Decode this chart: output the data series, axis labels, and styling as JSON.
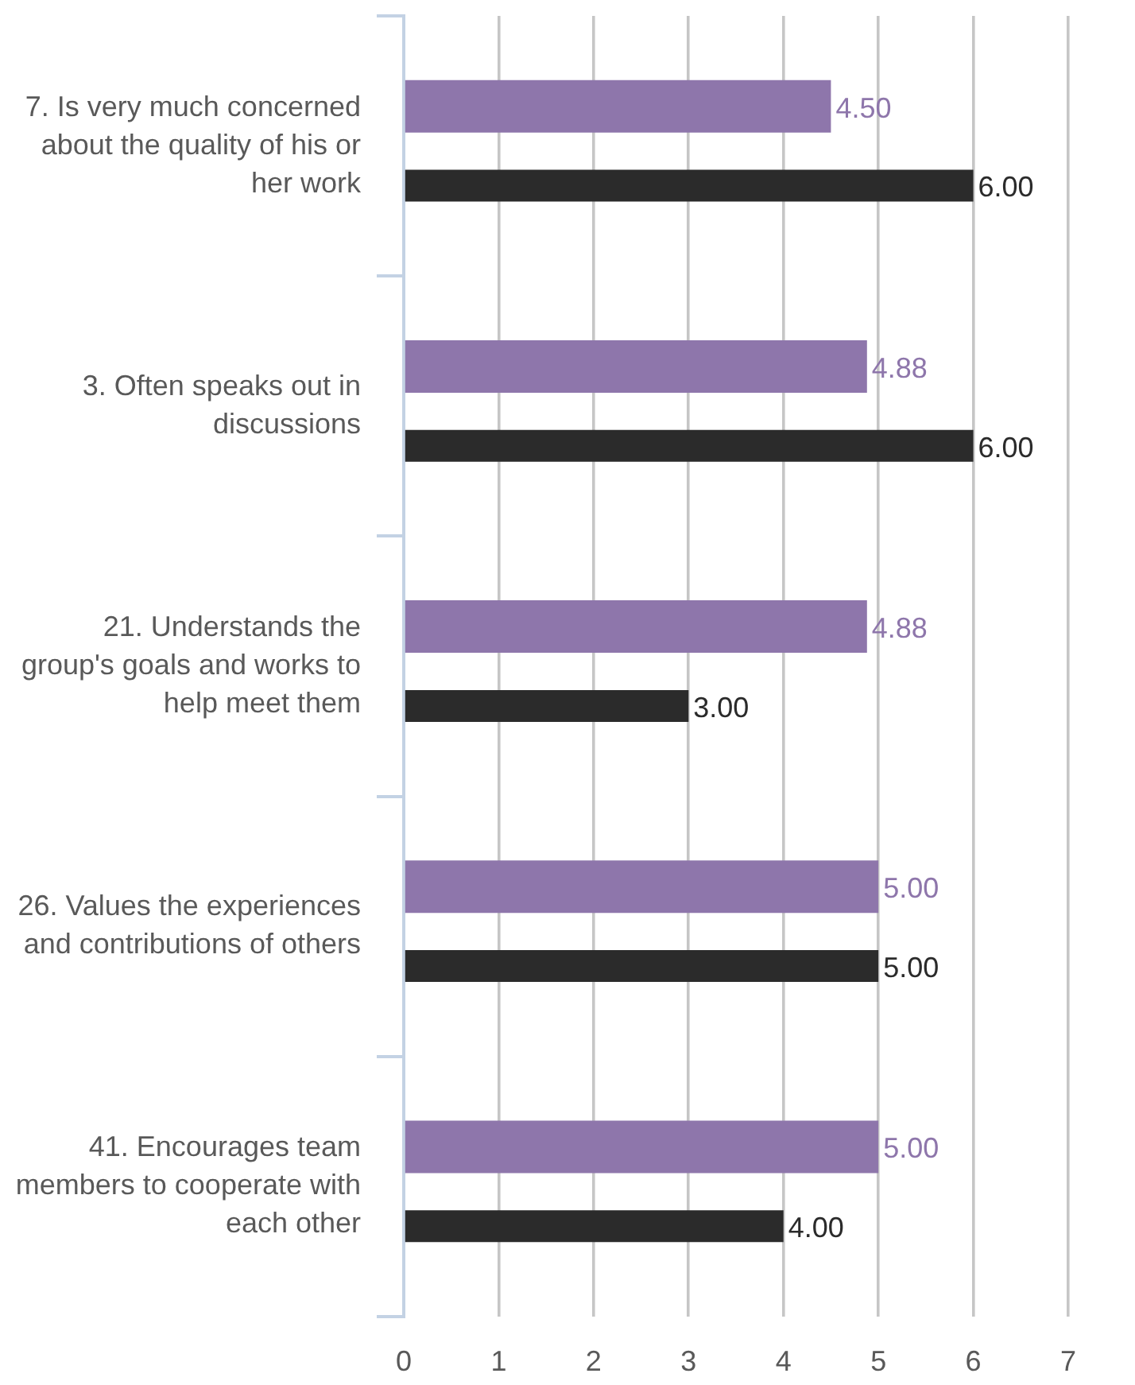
{
  "chart_data": {
    "type": "bar",
    "orientation": "horizontal",
    "categories": [
      "7. Is very much concerned about the quality of his or her work",
      "3. Often speaks out in discussions",
      "21. Understands the group's goals and works to help meet them",
      "26. Values the experiences and contributions of others",
      "41. Encourages team members to cooperate with each other"
    ],
    "series": [
      {
        "color": "#8e76ab",
        "values": [
          4.5,
          4.88,
          4.88,
          5,
          5
        ],
        "value_labels": [
          "4.50",
          "4.88",
          "4.88",
          "5.00",
          "5.00"
        ]
      },
      {
        "color": "#2b2b2b",
        "values": [
          6,
          6,
          3,
          5,
          4
        ],
        "value_labels": [
          "6.00",
          "6.00",
          "3.00",
          "5.00",
          "4.00"
        ]
      }
    ],
    "xlim": [
      0,
      7
    ],
    "xticks": [
      0,
      1,
      2,
      3,
      4,
      5,
      6,
      7
    ],
    "grid": "x"
  }
}
